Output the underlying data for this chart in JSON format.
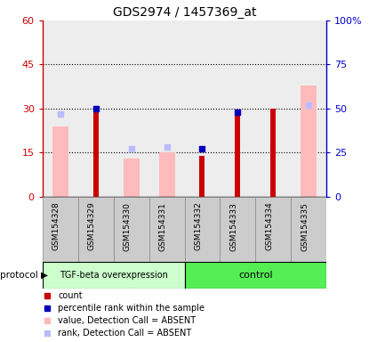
{
  "title": "GDS2974 / 1457369_at",
  "samples": [
    "GSM154328",
    "GSM154329",
    "GSM154330",
    "GSM154331",
    "GSM154332",
    "GSM154333",
    "GSM154334",
    "GSM154335"
  ],
  "count_values": [
    null,
    30,
    null,
    null,
    14,
    28,
    30,
    null
  ],
  "percentile_values": [
    null,
    50,
    null,
    null,
    27,
    48,
    null,
    null
  ],
  "value_absent": [
    24,
    null,
    13,
    15,
    null,
    null,
    null,
    38
  ],
  "rank_absent": [
    47,
    null,
    27,
    28,
    null,
    null,
    null,
    52
  ],
  "left_ylim": [
    0,
    60
  ],
  "right_ylim": [
    0,
    100
  ],
  "left_yticks": [
    0,
    15,
    30,
    45,
    60
  ],
  "right_yticks": [
    0,
    25,
    50,
    75,
    100
  ],
  "left_tick_labels": [
    "0",
    "15",
    "30",
    "45",
    "60"
  ],
  "right_tick_labels": [
    "0",
    "25",
    "50",
    "75",
    "100%"
  ],
  "group1_label": "TGF-beta overexpression",
  "group2_label": "control",
  "protocol_label": "protocol",
  "colors": {
    "count": "#cc0000",
    "percentile": "#0000bb",
    "value_absent": "#ffbbbb",
    "rank_absent": "#bbbbff",
    "group1_bg": "#ccffcc",
    "group2_bg": "#55ee55",
    "sample_col_bg": "#cccccc",
    "left_axis": "#cc0000",
    "right_axis": "#0000cc",
    "plot_bg": "#ffffff",
    "title": "#000000"
  },
  "n_group1": 4,
  "n_group2": 4
}
